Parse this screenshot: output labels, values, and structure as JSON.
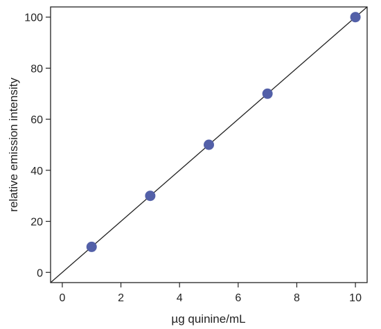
{
  "chart_data": {
    "type": "scatter",
    "xlabel": "µg quinine/mL",
    "ylabel": "relative emission intensity",
    "xlim": [
      -0.4,
      10.4
    ],
    "ylim": [
      -4,
      104
    ],
    "x_ticks": [
      0,
      2,
      4,
      6,
      8,
      10
    ],
    "y_ticks": [
      0,
      20,
      40,
      60,
      80,
      100
    ],
    "grid": false,
    "series": [
      {
        "points": [
          {
            "x": 1,
            "y": 10
          },
          {
            "x": 3,
            "y": 30
          },
          {
            "x": 5,
            "y": 50
          },
          {
            "x": 7,
            "y": 70
          },
          {
            "x": 10,
            "y": 100
          }
        ]
      }
    ],
    "fit_line": {
      "slope": 10,
      "intercept": 0
    },
    "colors": {
      "points": "#5360a8",
      "line": "#222222",
      "axes": "#222222"
    }
  }
}
